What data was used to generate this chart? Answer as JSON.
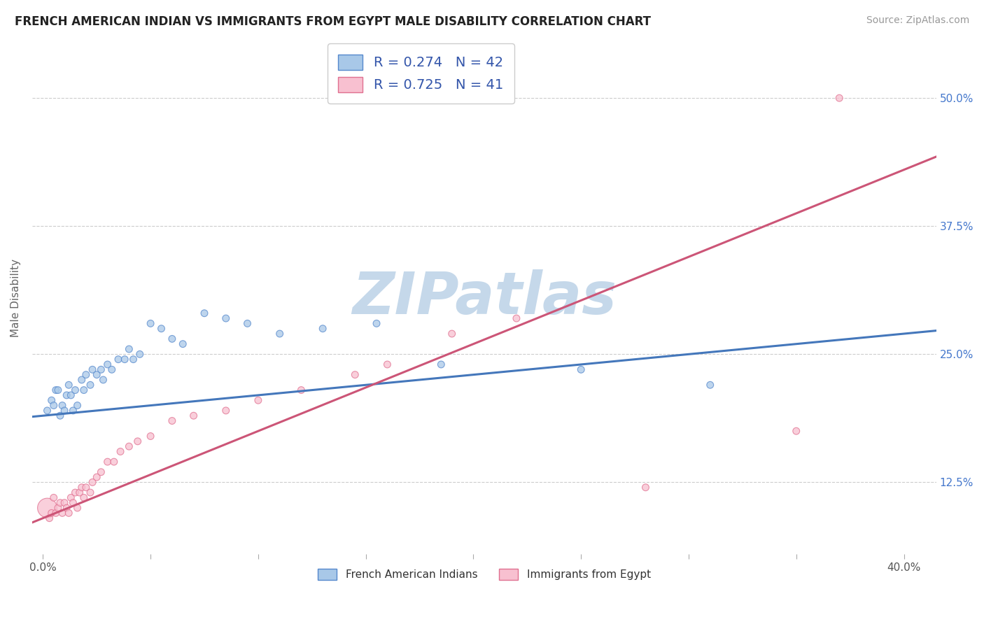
{
  "title": "FRENCH AMERICAN INDIAN VS IMMIGRANTS FROM EGYPT MALE DISABILITY CORRELATION CHART",
  "source_text": "Source: ZipAtlas.com",
  "xlim": [
    -0.005,
    0.415
  ],
  "ylim": [
    0.055,
    0.555
  ],
  "ylabel": "Male Disability",
  "ylabel_ticks": [
    0.125,
    0.25,
    0.375,
    0.5
  ],
  "xtick_positions": [
    0.0,
    0.05,
    0.1,
    0.15,
    0.2,
    0.25,
    0.3,
    0.35,
    0.4
  ],
  "xtick_labels_show": {
    "0.0": "0.0%",
    "0.4": "40.0%"
  },
  "series1_name": "French American Indians",
  "series1_color": "#a8c8e8",
  "series1_edge_color": "#5588cc",
  "series1_line_color": "#4477bb",
  "series1_R": 0.274,
  "series1_N": 42,
  "series2_name": "Immigrants from Egypt",
  "series2_color": "#f8c0d0",
  "series2_edge_color": "#e07090",
  "series2_line_color": "#cc5577",
  "series2_R": 0.725,
  "series2_N": 41,
  "legend_color": "#3355aa",
  "background_color": "#ffffff",
  "grid_color": "#cccccc",
  "watermark": "ZIPatlas",
  "watermark_color": "#c5d8ea",
  "series1_x": [
    0.002,
    0.004,
    0.005,
    0.006,
    0.007,
    0.008,
    0.009,
    0.01,
    0.011,
    0.012,
    0.013,
    0.014,
    0.015,
    0.016,
    0.018,
    0.019,
    0.02,
    0.022,
    0.023,
    0.025,
    0.027,
    0.028,
    0.03,
    0.032,
    0.035,
    0.038,
    0.04,
    0.042,
    0.045,
    0.05,
    0.055,
    0.06,
    0.065,
    0.075,
    0.085,
    0.095,
    0.11,
    0.13,
    0.155,
    0.185,
    0.25,
    0.31
  ],
  "series1_y": [
    0.195,
    0.205,
    0.2,
    0.215,
    0.215,
    0.19,
    0.2,
    0.195,
    0.21,
    0.22,
    0.21,
    0.195,
    0.215,
    0.2,
    0.225,
    0.215,
    0.23,
    0.22,
    0.235,
    0.23,
    0.235,
    0.225,
    0.24,
    0.235,
    0.245,
    0.245,
    0.255,
    0.245,
    0.25,
    0.28,
    0.275,
    0.265,
    0.26,
    0.29,
    0.285,
    0.28,
    0.27,
    0.275,
    0.28,
    0.24,
    0.235,
    0.22
  ],
  "series1_sizes": [
    50,
    50,
    50,
    50,
    50,
    50,
    50,
    50,
    50,
    50,
    50,
    50,
    50,
    50,
    50,
    50,
    50,
    50,
    50,
    50,
    50,
    50,
    50,
    50,
    50,
    50,
    50,
    50,
    50,
    50,
    50,
    50,
    50,
    50,
    50,
    50,
    50,
    50,
    50,
    50,
    50,
    50
  ],
  "series2_x": [
    0.002,
    0.003,
    0.004,
    0.005,
    0.006,
    0.007,
    0.008,
    0.009,
    0.01,
    0.011,
    0.012,
    0.013,
    0.014,
    0.015,
    0.016,
    0.017,
    0.018,
    0.019,
    0.02,
    0.022,
    0.023,
    0.025,
    0.027,
    0.03,
    0.033,
    0.036,
    0.04,
    0.044,
    0.05,
    0.06,
    0.07,
    0.085,
    0.1,
    0.12,
    0.145,
    0.16,
    0.19,
    0.22,
    0.28,
    0.35,
    0.37
  ],
  "series2_y": [
    0.1,
    0.09,
    0.095,
    0.11,
    0.095,
    0.1,
    0.105,
    0.095,
    0.105,
    0.1,
    0.095,
    0.11,
    0.105,
    0.115,
    0.1,
    0.115,
    0.12,
    0.11,
    0.12,
    0.115,
    0.125,
    0.13,
    0.135,
    0.145,
    0.145,
    0.155,
    0.16,
    0.165,
    0.17,
    0.185,
    0.19,
    0.195,
    0.205,
    0.215,
    0.23,
    0.24,
    0.27,
    0.285,
    0.12,
    0.175,
    0.5
  ],
  "series2_sizes": [
    400,
    50,
    50,
    50,
    50,
    50,
    50,
    50,
    50,
    50,
    50,
    50,
    50,
    50,
    50,
    50,
    50,
    50,
    50,
    50,
    50,
    50,
    50,
    50,
    50,
    50,
    50,
    50,
    50,
    50,
    50,
    50,
    50,
    50,
    50,
    50,
    50,
    50,
    50,
    50,
    50
  ],
  "trend1_x0": 0.0,
  "trend1_y0": 0.19,
  "trend1_x1": 0.4,
  "trend1_y1": 0.27,
  "trend2_x0": 0.0,
  "trend2_y0": 0.09,
  "trend2_x1": 0.4,
  "trend2_y1": 0.43
}
